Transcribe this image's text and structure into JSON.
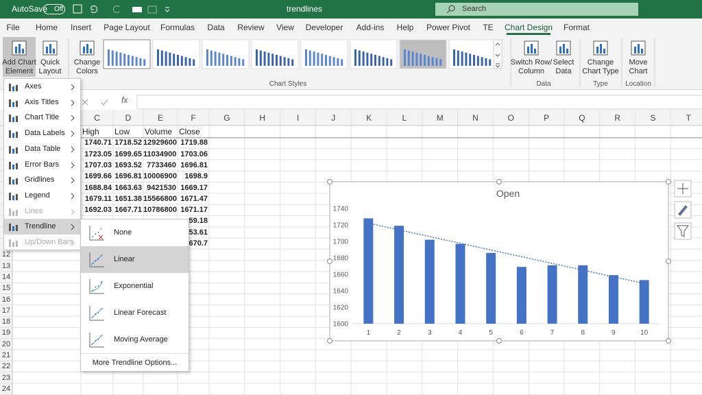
{
  "title_bar": {
    "autosave": "AutoSave",
    "autosave_state": "Off",
    "file_name": "trendlines",
    "search": "Search"
  },
  "tabs": [
    {
      "label": "File"
    },
    {
      "label": "Home"
    },
    {
      "label": "Insert"
    },
    {
      "label": "Page Layout"
    },
    {
      "label": "Formulas"
    },
    {
      "label": "Data"
    },
    {
      "label": "Review"
    },
    {
      "label": "View"
    },
    {
      "label": "Developer"
    },
    {
      "label": "Add-ins"
    },
    {
      "label": "Help"
    },
    {
      "label": "Power Pivot"
    },
    {
      "label": "TE"
    },
    {
      "label": "Chart Design",
      "active": true
    },
    {
      "label": "Format"
    }
  ],
  "ribbon": {
    "buttons": [
      {
        "label": "Add Chart Element"
      },
      {
        "label": "Quick Layout"
      },
      {
        "label": "Change Colors"
      },
      {
        "label": "Switch Row/ Column"
      },
      {
        "label": "Select Data"
      },
      {
        "label": "Change Chart Type"
      },
      {
        "label": "Move Chart"
      }
    ],
    "groups": [
      "Chart Styles",
      "Data",
      "Type",
      "Location"
    ]
  },
  "formula_bar": {
    "fx": "fx"
  },
  "columns": [
    "C",
    "D",
    "E",
    "F",
    "G",
    "H",
    "I",
    "J",
    "K",
    "L",
    "M",
    "N",
    "O",
    "P",
    "Q",
    "R",
    "S",
    "T"
  ],
  "row_numbers": [
    12,
    13,
    14,
    15,
    16,
    17,
    18,
    19,
    20,
    21,
    22,
    23,
    24
  ],
  "sheet": {
    "header": [
      "High",
      "Low",
      "Volume",
      "Close"
    ],
    "rows": [
      [
        1740.71,
        1718.52,
        12929600,
        1719.88
      ],
      [
        1723.05,
        1699.65,
        11034900,
        1703.06
      ],
      [
        1707.03,
        1693.52,
        7733460,
        1696.81
      ],
      [
        1699.66,
        1696.81,
        10006900,
        1698.9
      ],
      [
        1688.84,
        1663.63,
        9421530,
        1669.17
      ],
      [
        1679.11,
        1651.38,
        15566800,
        1671.47
      ],
      [
        1692.03,
        1667.71,
        10786800,
        1671.17
      ]
    ],
    "partial_close": [
      "59.18",
      "53.61",
      "670.7"
    ]
  },
  "menu": {
    "items": [
      {
        "label": "Axes",
        "enabled": true
      },
      {
        "label": "Axis Titles",
        "enabled": true
      },
      {
        "label": "Chart Title",
        "enabled": true
      },
      {
        "label": "Data Labels",
        "enabled": true
      },
      {
        "label": "Data Table",
        "enabled": true
      },
      {
        "label": "Error Bars",
        "enabled": true
      },
      {
        "label": "Gridlines",
        "enabled": true
      },
      {
        "label": "Legend",
        "enabled": true
      },
      {
        "label": "Lines",
        "enabled": false
      },
      {
        "label": "Trendline",
        "enabled": true,
        "active": true
      },
      {
        "label": "Up/Down Bars",
        "enabled": false
      }
    ]
  },
  "submenu": {
    "items": [
      {
        "label": "None"
      },
      {
        "label": "Linear",
        "highlighted": true
      },
      {
        "label": "Exponential"
      },
      {
        "label": "Linear Forecast"
      },
      {
        "label": "Moving Average"
      }
    ],
    "more": "More Trendline Options..."
  },
  "chart_data": {
    "type": "bar",
    "title": "Open",
    "categories": [
      1,
      2,
      3,
      4,
      5,
      6,
      7,
      8,
      9,
      10
    ],
    "values": [
      1728,
      1719,
      1702,
      1697,
      1686,
      1669,
      1671,
      1671,
      1659,
      1653
    ],
    "color": "#4472c4",
    "ylim": [
      1600,
      1740
    ],
    "yticks": [
      1600,
      1620,
      1640,
      1660,
      1680,
      1700,
      1720,
      1740
    ],
    "grid": false,
    "trendline": "linear"
  }
}
